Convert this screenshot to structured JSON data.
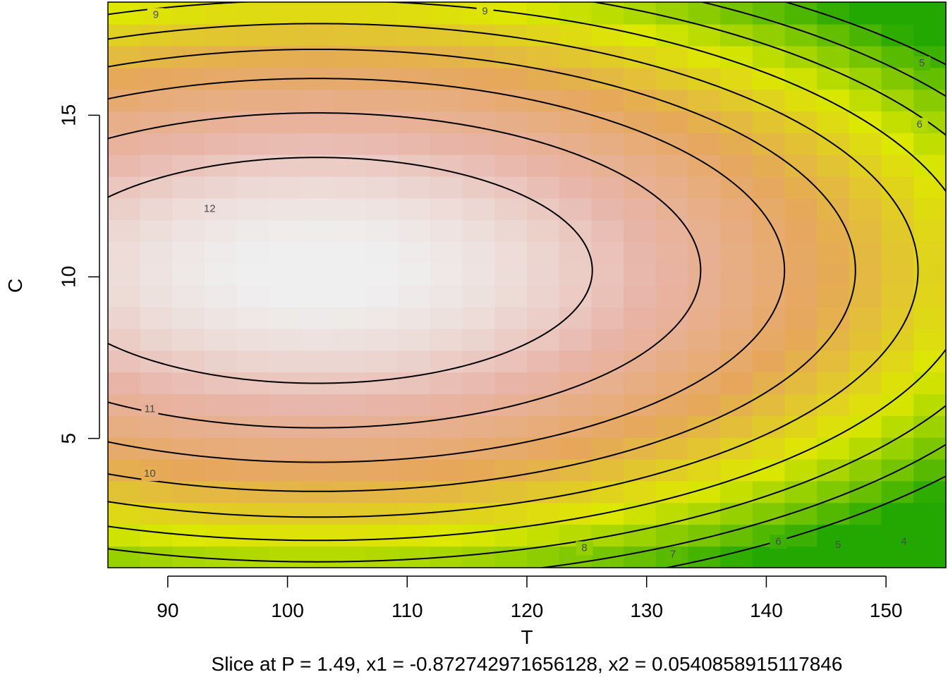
{
  "chart_data": {
    "type": "heatmap",
    "subtype": "contour",
    "title": "",
    "subtitle": "Slice at P = 1.49, x1 = -0.872742971656128, x2 = 0.0540858915117846",
    "xlabel": "T",
    "ylabel": "C",
    "xlim": [
      85,
      155
    ],
    "ylim": [
      1,
      18.5
    ],
    "x_ticks": [
      90,
      100,
      110,
      120,
      130,
      140,
      150
    ],
    "y_ticks": [
      5,
      10,
      15
    ],
    "x_tick_labels": [
      "90",
      "100",
      "110",
      "120",
      "130",
      "140",
      "150"
    ],
    "y_tick_labels": [
      "5",
      "10",
      "15"
    ],
    "grid": false,
    "legend": "none",
    "color_scale": {
      "low_color": "#22a800",
      "mid_low_color": "#dde800",
      "mid_color": "#e6a75a",
      "mid_high_color": "#e8b4a8",
      "high_color": "#efefef",
      "range": [
        3.5,
        13
      ]
    },
    "surface_model": {
      "center_T": 102.5,
      "center_C": 10.2,
      "peak": 13.06,
      "curvature_T": 0.00201,
      "curvature_C": 0.0868
    },
    "contour_levels": [
      4,
      5,
      6,
      7,
      8,
      9,
      10,
      11,
      12
    ],
    "contour_labels": [
      {
        "text": "12",
        "T": 93.5,
        "C": 12.1
      },
      {
        "text": "11",
        "T": 88.5,
        "C": 5.9
      },
      {
        "text": "10",
        "T": 88.5,
        "C": 3.9
      },
      {
        "text": "9",
        "T": 89.0,
        "C": 18.1
      },
      {
        "text": "9",
        "T": 116.5,
        "C": 18.2
      },
      {
        "text": "8",
        "T": 124.8,
        "C": 1.6
      },
      {
        "text": "7",
        "T": 132.2,
        "C": 1.4
      },
      {
        "text": "6",
        "T": 141.0,
        "C": 1.8
      },
      {
        "text": "5",
        "T": 146.0,
        "C": 1.7
      },
      {
        "text": "4",
        "T": 151.5,
        "C": 1.8
      },
      {
        "text": "5",
        "T": 153.0,
        "C": 16.6
      },
      {
        "text": "6",
        "T": 152.8,
        "C": 14.7
      }
    ]
  }
}
